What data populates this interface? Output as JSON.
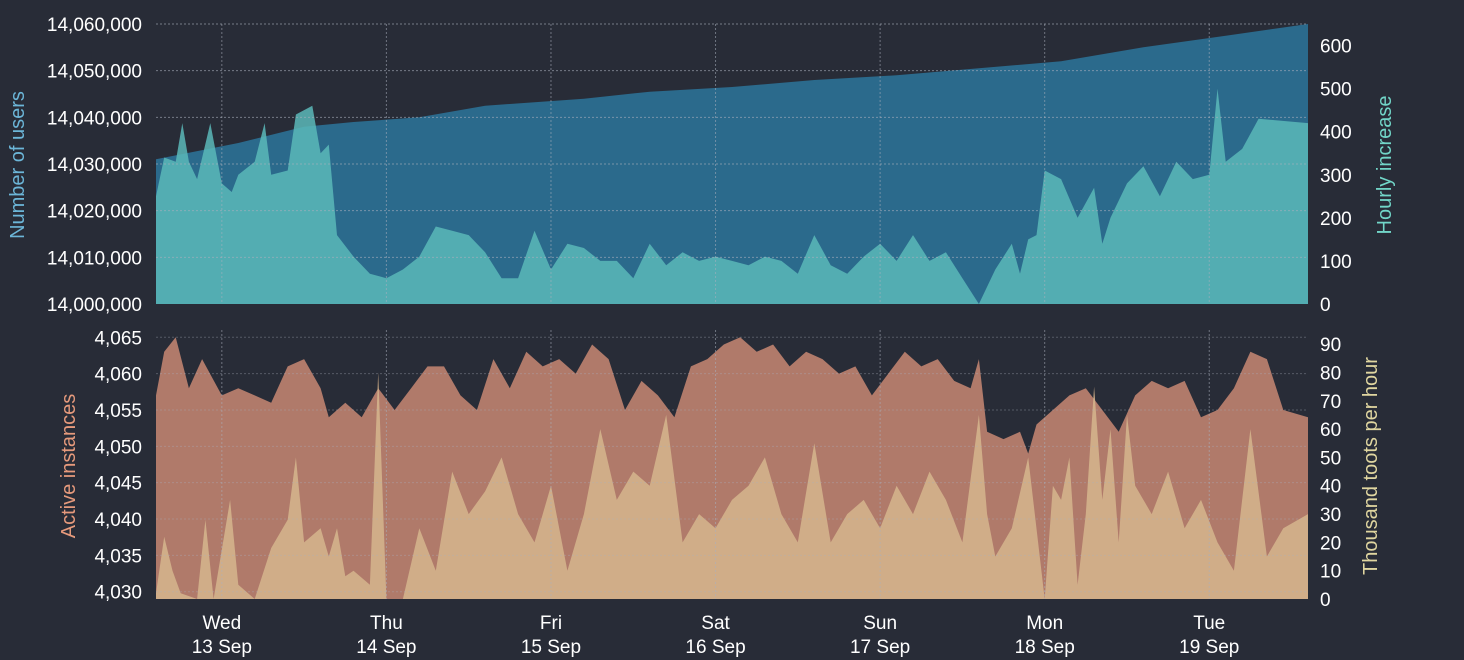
{
  "colors": {
    "background": "#282c37",
    "users_fill": "#2b6a8c",
    "hourly_fill": "#5ab8b8",
    "instances_fill": "#b07a6a",
    "toots_fill": "#d4b28c",
    "users_label": "#6cb6d8",
    "hourly_label": "#72d6c8",
    "instances_label": "#e69a7c",
    "toots_label": "#e0d6a0",
    "grid": "#aab0bd"
  },
  "x_axis": {
    "days": [
      {
        "day": "Wed",
        "date": "13 Sep"
      },
      {
        "day": "Thu",
        "date": "14 Sep"
      },
      {
        "day": "Fri",
        "date": "15 Sep"
      },
      {
        "day": "Sat",
        "date": "16 Sep"
      },
      {
        "day": "Sun",
        "date": "17 Sep"
      },
      {
        "day": "Mon",
        "date": "18 Sep"
      },
      {
        "day": "Tue",
        "date": "19 Sep"
      }
    ]
  },
  "chart_data": [
    {
      "type": "area",
      "title": "",
      "xlabel": "",
      "ylabel": "Number of users",
      "ylim": [
        14000000,
        14060000
      ],
      "yticks": [
        "14,000,000",
        "14,010,000",
        "14,020,000",
        "14,030,000",
        "14,040,000",
        "14,050,000",
        "14,060,000"
      ],
      "x_range_days": [
        0,
        7
      ],
      "series": [
        {
          "name": "Number of users",
          "axis": "left",
          "points": [
            [
              0,
              14031000
            ],
            [
              0.5,
              14034500
            ],
            [
              0.9,
              14038000
            ],
            [
              1.2,
              14039000
            ],
            [
              1.6,
              14040000
            ],
            [
              2,
              14042500
            ],
            [
              2.6,
              14044000
            ],
            [
              3,
              14045500
            ],
            [
              3.5,
              14046500
            ],
            [
              4,
              14048000
            ],
            [
              4.5,
              14049000
            ],
            [
              5,
              14050500
            ],
            [
              5.5,
              14052000
            ],
            [
              6,
              14055000
            ],
            [
              6.5,
              14057500
            ],
            [
              7,
              14060000
            ]
          ]
        }
      ]
    },
    {
      "type": "area",
      "title": "",
      "xlabel": "",
      "ylabel": "Hourly increase",
      "ylim": [
        0,
        650
      ],
      "yticks": [
        "0",
        "100",
        "200",
        "300",
        "400",
        "500",
        "600"
      ],
      "x_range_days": [
        0,
        7
      ],
      "series": [
        {
          "name": "Hourly increase",
          "axis": "right",
          "points": [
            [
              0,
              250
            ],
            [
              0.05,
              340
            ],
            [
              0.12,
              330
            ],
            [
              0.16,
              420
            ],
            [
              0.2,
              330
            ],
            [
              0.25,
              290
            ],
            [
              0.33,
              420
            ],
            [
              0.4,
              280
            ],
            [
              0.46,
              260
            ],
            [
              0.5,
              300
            ],
            [
              0.6,
              330
            ],
            [
              0.66,
              420
            ],
            [
              0.7,
              300
            ],
            [
              0.8,
              310
            ],
            [
              0.85,
              440
            ],
            [
              0.95,
              460
            ],
            [
              1.0,
              350
            ],
            [
              1.05,
              370
            ],
            [
              1.1,
              160
            ],
            [
              1.2,
              110
            ],
            [
              1.3,
              70
            ],
            [
              1.4,
              60
            ],
            [
              1.5,
              80
            ],
            [
              1.6,
              110
            ],
            [
              1.7,
              180
            ],
            [
              1.8,
              170
            ],
            [
              1.9,
              160
            ],
            [
              2.0,
              120
            ],
            [
              2.1,
              60
            ],
            [
              2.2,
              60
            ],
            [
              2.3,
              170
            ],
            [
              2.4,
              80
            ],
            [
              2.5,
              140
            ],
            [
              2.6,
              130
            ],
            [
              2.7,
              100
            ],
            [
              2.8,
              100
            ],
            [
              2.9,
              60
            ],
            [
              3.0,
              140
            ],
            [
              3.1,
              90
            ],
            [
              3.2,
              120
            ],
            [
              3.3,
              100
            ],
            [
              3.4,
              110
            ],
            [
              3.5,
              100
            ],
            [
              3.6,
              90
            ],
            [
              3.7,
              110
            ],
            [
              3.8,
              100
            ],
            [
              3.9,
              70
            ],
            [
              4.0,
              160
            ],
            [
              4.1,
              90
            ],
            [
              4.2,
              70
            ],
            [
              4.3,
              110
            ],
            [
              4.4,
              140
            ],
            [
              4.5,
              100
            ],
            [
              4.6,
              160
            ],
            [
              4.7,
              100
            ],
            [
              4.8,
              120
            ],
            [
              4.9,
              60
            ],
            [
              5.0,
              0
            ],
            [
              5.1,
              80
            ],
            [
              5.2,
              140
            ],
            [
              5.25,
              70
            ],
            [
              5.3,
              150
            ],
            [
              5.35,
              160
            ],
            [
              5.4,
              310
            ],
            [
              5.5,
              290
            ],
            [
              5.6,
              200
            ],
            [
              5.7,
              270
            ],
            [
              5.75,
              140
            ],
            [
              5.8,
              200
            ],
            [
              5.9,
              280
            ],
            [
              6.0,
              320
            ],
            [
              6.1,
              250
            ],
            [
              6.2,
              330
            ],
            [
              6.3,
              290
            ],
            [
              6.4,
              300
            ],
            [
              6.45,
              500
            ],
            [
              6.5,
              330
            ],
            [
              6.6,
              360
            ],
            [
              6.7,
              430
            ],
            [
              7.0,
              420
            ]
          ]
        }
      ]
    },
    {
      "type": "area",
      "title": "",
      "xlabel": "",
      "ylabel": "Active instances",
      "ylim": [
        4029,
        4066
      ],
      "yticks": [
        "4,030",
        "4,035",
        "4,040",
        "4,045",
        "4,050",
        "4,055",
        "4,060",
        "4,065"
      ],
      "x_range_days": [
        0,
        7
      ],
      "series": [
        {
          "name": "Active instances",
          "axis": "left",
          "points": [
            [
              0,
              4057
            ],
            [
              0.05,
              4063
            ],
            [
              0.12,
              4065
            ],
            [
              0.2,
              4058
            ],
            [
              0.28,
              4062
            ],
            [
              0.4,
              4057
            ],
            [
              0.5,
              4058
            ],
            [
              0.6,
              4057
            ],
            [
              0.7,
              4056
            ],
            [
              0.8,
              4061
            ],
            [
              0.9,
              4062
            ],
            [
              1.0,
              4058
            ],
            [
              1.05,
              4054
            ],
            [
              1.15,
              4056
            ],
            [
              1.25,
              4054
            ],
            [
              1.35,
              4058
            ],
            [
              1.45,
              4055
            ],
            [
              1.55,
              4058
            ],
            [
              1.65,
              4061
            ],
            [
              1.75,
              4061
            ],
            [
              1.85,
              4057
            ],
            [
              1.95,
              4055
            ],
            [
              2.05,
              4062
            ],
            [
              2.15,
              4058
            ],
            [
              2.25,
              4063
            ],
            [
              2.35,
              4061
            ],
            [
              2.45,
              4062
            ],
            [
              2.55,
              4060
            ],
            [
              2.65,
              4064
            ],
            [
              2.75,
              4062
            ],
            [
              2.85,
              4055
            ],
            [
              2.95,
              4059
            ],
            [
              3.05,
              4057
            ],
            [
              3.15,
              4054
            ],
            [
              3.25,
              4061
            ],
            [
              3.35,
              4062
            ],
            [
              3.45,
              4064
            ],
            [
              3.55,
              4065
            ],
            [
              3.65,
              4063
            ],
            [
              3.75,
              4064
            ],
            [
              3.85,
              4061
            ],
            [
              3.95,
              4063
            ],
            [
              4.05,
              4062
            ],
            [
              4.15,
              4060
            ],
            [
              4.25,
              4061
            ],
            [
              4.35,
              4057
            ],
            [
              4.45,
              4060
            ],
            [
              4.55,
              4063
            ],
            [
              4.65,
              4061
            ],
            [
              4.75,
              4062
            ],
            [
              4.85,
              4059
            ],
            [
              4.95,
              4058
            ],
            [
              5.0,
              4062
            ],
            [
              5.05,
              4052
            ],
            [
              5.15,
              4051
            ],
            [
              5.25,
              4052
            ],
            [
              5.3,
              4049
            ],
            [
              5.35,
              4053
            ],
            [
              5.45,
              4055
            ],
            [
              5.55,
              4057
            ],
            [
              5.65,
              4058
            ],
            [
              5.75,
              4055
            ],
            [
              5.85,
              4052
            ],
            [
              5.95,
              4057
            ],
            [
              6.05,
              4059
            ],
            [
              6.15,
              4058
            ],
            [
              6.25,
              4059
            ],
            [
              6.35,
              4054
            ],
            [
              6.45,
              4055
            ],
            [
              6.55,
              4058
            ],
            [
              6.65,
              4063
            ],
            [
              6.75,
              4062
            ],
            [
              6.85,
              4055
            ],
            [
              7.0,
              4054
            ]
          ]
        },
        {
          "name": "Thousand toots per hour",
          "axis": "right",
          "points": [
            [
              0,
              2
            ],
            [
              0.05,
              22
            ],
            [
              0.1,
              10
            ],
            [
              0.15,
              2
            ],
            [
              0.25,
              0
            ],
            [
              0.3,
              28
            ],
            [
              0.35,
              0
            ],
            [
              0.45,
              35
            ],
            [
              0.5,
              5
            ],
            [
              0.6,
              0
            ],
            [
              0.7,
              18
            ],
            [
              0.8,
              28
            ],
            [
              0.85,
              50
            ],
            [
              0.9,
              20
            ],
            [
              1.0,
              25
            ],
            [
              1.05,
              15
            ],
            [
              1.1,
              25
            ],
            [
              1.15,
              8
            ],
            [
              1.2,
              10
            ],
            [
              1.3,
              5
            ],
            [
              1.35,
              80
            ],
            [
              1.4,
              0
            ],
            [
              1.5,
              0
            ],
            [
              1.6,
              25
            ],
            [
              1.7,
              10
            ],
            [
              1.8,
              45
            ],
            [
              1.9,
              30
            ],
            [
              2.0,
              38
            ],
            [
              2.1,
              50
            ],
            [
              2.2,
              30
            ],
            [
              2.3,
              20
            ],
            [
              2.4,
              40
            ],
            [
              2.5,
              10
            ],
            [
              2.6,
              30
            ],
            [
              2.7,
              60
            ],
            [
              2.8,
              35
            ],
            [
              2.9,
              45
            ],
            [
              3.0,
              40
            ],
            [
              3.1,
              65
            ],
            [
              3.2,
              20
            ],
            [
              3.3,
              30
            ],
            [
              3.4,
              25
            ],
            [
              3.5,
              35
            ],
            [
              3.6,
              40
            ],
            [
              3.7,
              50
            ],
            [
              3.8,
              30
            ],
            [
              3.9,
              20
            ],
            [
              4.0,
              55
            ],
            [
              4.1,
              20
            ],
            [
              4.2,
              30
            ],
            [
              4.3,
              35
            ],
            [
              4.4,
              25
            ],
            [
              4.5,
              40
            ],
            [
              4.6,
              30
            ],
            [
              4.7,
              45
            ],
            [
              4.8,
              35
            ],
            [
              4.9,
              20
            ],
            [
              5.0,
              65
            ],
            [
              5.05,
              30
            ],
            [
              5.1,
              15
            ],
            [
              5.2,
              25
            ],
            [
              5.3,
              50
            ],
            [
              5.4,
              0
            ],
            [
              5.45,
              40
            ],
            [
              5.5,
              35
            ],
            [
              5.55,
              50
            ],
            [
              5.6,
              5
            ],
            [
              5.65,
              30
            ],
            [
              5.7,
              75
            ],
            [
              5.75,
              35
            ],
            [
              5.8,
              60
            ],
            [
              5.85,
              20
            ],
            [
              5.9,
              65
            ],
            [
              5.95,
              40
            ],
            [
              6.05,
              30
            ],
            [
              6.15,
              45
            ],
            [
              6.25,
              25
            ],
            [
              6.35,
              35
            ],
            [
              6.45,
              20
            ],
            [
              6.55,
              10
            ],
            [
              6.65,
              60
            ],
            [
              6.75,
              15
            ],
            [
              6.85,
              25
            ],
            [
              7.0,
              30
            ]
          ]
        }
      ]
    }
  ],
  "axis_titles": {
    "users": "Number of users",
    "hourly": "Hourly increase",
    "instances": "Active instances",
    "toots": "Thousand toots per hour"
  },
  "toots_axis": {
    "ylim": [
      0,
      95
    ],
    "yticks": [
      "0",
      "10",
      "20",
      "30",
      "40",
      "50",
      "60",
      "70",
      "80",
      "90"
    ]
  }
}
